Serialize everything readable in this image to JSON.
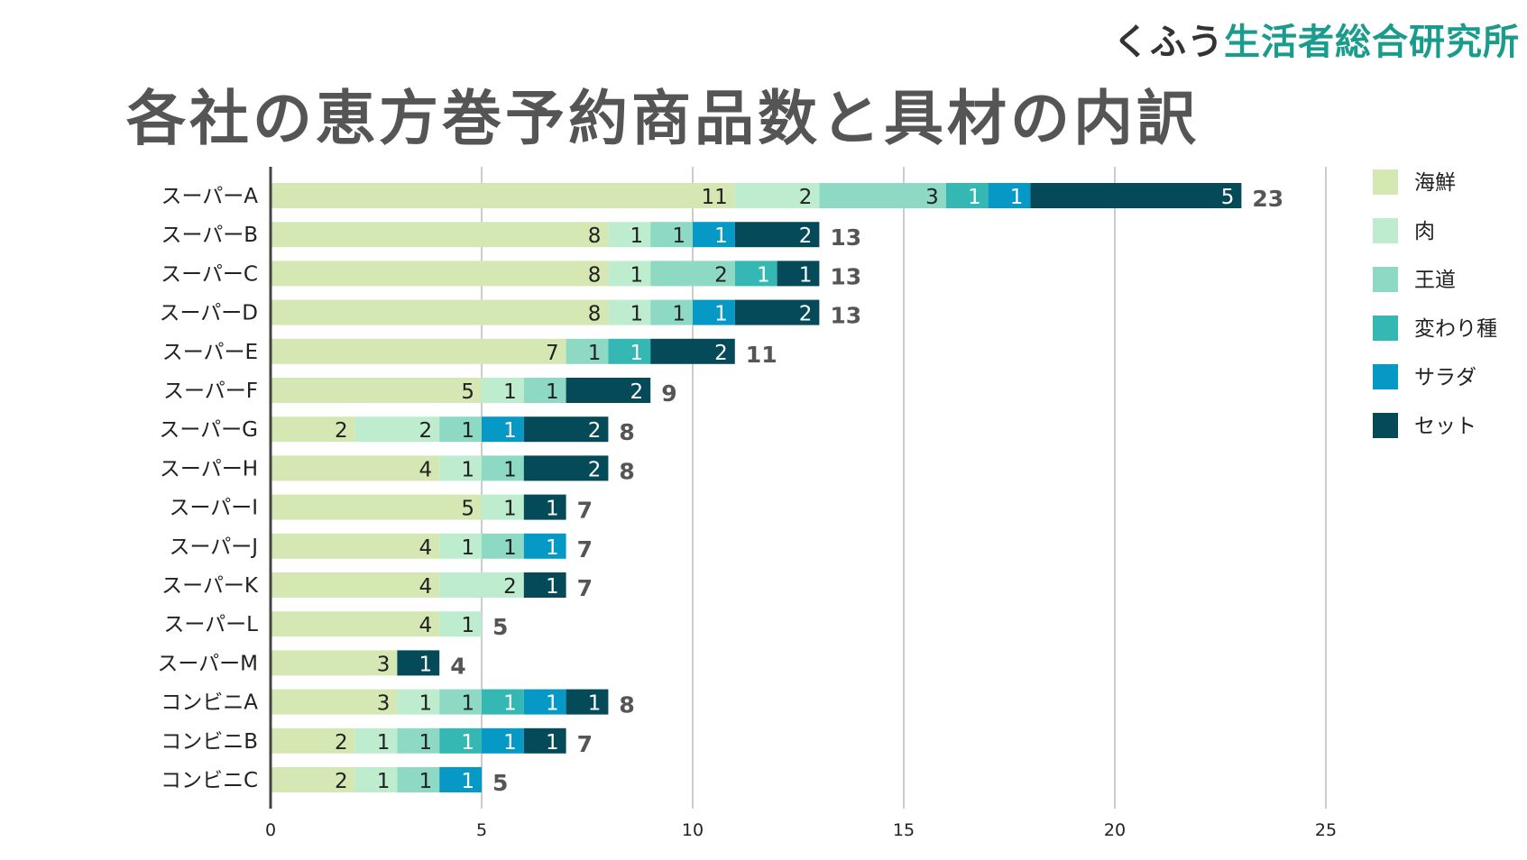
{
  "logo": {
    "brand": "くふう",
    "org": "生活者総合研究所"
  },
  "title": "各社の恵方巻予約商品数と具材の内訳",
  "chart_data": {
    "type": "bar",
    "orientation": "horizontal",
    "stacked": true,
    "title": "各社の恵方巻予約商品数と具材の内訳",
    "xlim": [
      0,
      25
    ],
    "xticks": [
      0,
      5,
      10,
      15,
      20,
      25
    ],
    "grid": true,
    "legend_position": "right",
    "categories": [
      "スーパーA",
      "スーパーB",
      "スーパーC",
      "スーパーD",
      "スーパーE",
      "スーパーF",
      "スーパーG",
      "スーパーH",
      "スーパーI",
      "スーパーJ",
      "スーパーK",
      "スーパーL",
      "スーパーM",
      "コンビニA",
      "コンビニB",
      "コンビニC"
    ],
    "series": [
      {
        "name": "海鮮",
        "color": "#d5e8b4",
        "label_color": "#222222",
        "values": [
          11,
          8,
          8,
          8,
          7,
          5,
          2,
          4,
          5,
          4,
          4,
          4,
          3,
          3,
          2,
          2
        ]
      },
      {
        "name": "肉",
        "color": "#bdeccf",
        "label_color": "#222222",
        "values": [
          2,
          1,
          1,
          1,
          0,
          1,
          2,
          1,
          1,
          1,
          2,
          1,
          0,
          1,
          1,
          1
        ]
      },
      {
        "name": "王道",
        "color": "#8dd9c4",
        "label_color": "#222222",
        "values": [
          3,
          1,
          2,
          1,
          1,
          1,
          1,
          1,
          0,
          1,
          0,
          0,
          0,
          1,
          1,
          1
        ]
      },
      {
        "name": "変わり種",
        "color": "#35b8b4",
        "label_color": "#ffffff",
        "values": [
          1,
          0,
          1,
          0,
          1,
          0,
          0,
          0,
          0,
          0,
          0,
          0,
          0,
          1,
          1,
          0
        ]
      },
      {
        "name": "サラダ",
        "color": "#0799c6",
        "label_color": "#ffffff",
        "values": [
          1,
          1,
          0,
          1,
          0,
          0,
          1,
          0,
          0,
          1,
          0,
          0,
          0,
          1,
          1,
          1
        ]
      },
      {
        "name": "セット",
        "color": "#044a58",
        "label_color": "#ffffff",
        "values": [
          5,
          2,
          1,
          2,
          2,
          2,
          2,
          2,
          1,
          0,
          1,
          0,
          1,
          1,
          1,
          0
        ]
      }
    ],
    "totals": [
      23,
      13,
      13,
      13,
      11,
      9,
      8,
      8,
      7,
      7,
      7,
      5,
      4,
      8,
      7,
      5
    ]
  }
}
